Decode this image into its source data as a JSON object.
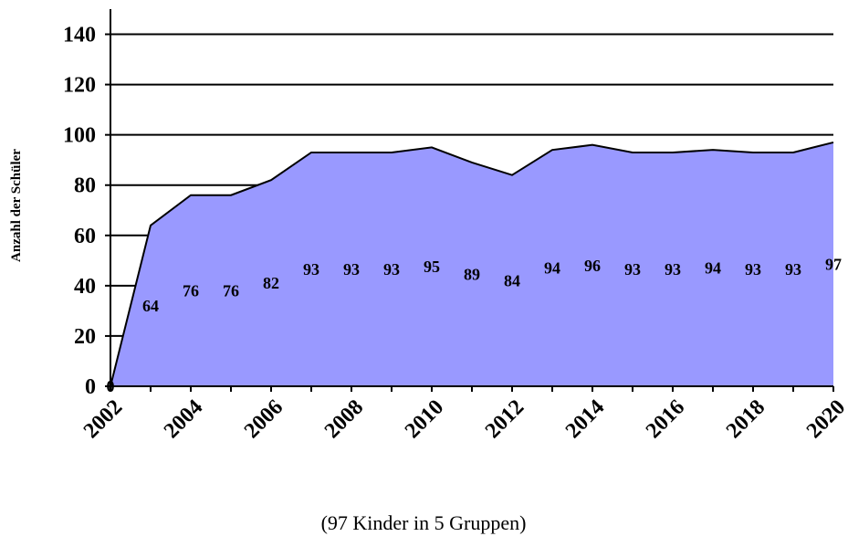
{
  "chart_data": {
    "type": "area",
    "x": [
      2002,
      2003,
      2004,
      2005,
      2006,
      2007,
      2008,
      2009,
      2010,
      2011,
      2012,
      2013,
      2014,
      2015,
      2016,
      2017,
      2018,
      2019,
      2020
    ],
    "values": [
      0,
      64,
      76,
      76,
      82,
      93,
      93,
      93,
      95,
      89,
      84,
      94,
      96,
      93,
      93,
      94,
      93,
      93,
      97
    ],
    "color": "#9999ff",
    "ylabel": "Anzahl der Schüler",
    "xlabel": "(97 Kinder in 5 Gruppen)",
    "xlim": [
      2002,
      2020
    ],
    "xticks": [
      2002,
      2004,
      2006,
      2008,
      2010,
      2012,
      2014,
      2016,
      2018,
      2020
    ],
    "ylim": [
      0,
      150
    ],
    "yticks": [
      0,
      20,
      40,
      60,
      80,
      100,
      120,
      140
    ],
    "grid": true,
    "data_labels": true
  }
}
